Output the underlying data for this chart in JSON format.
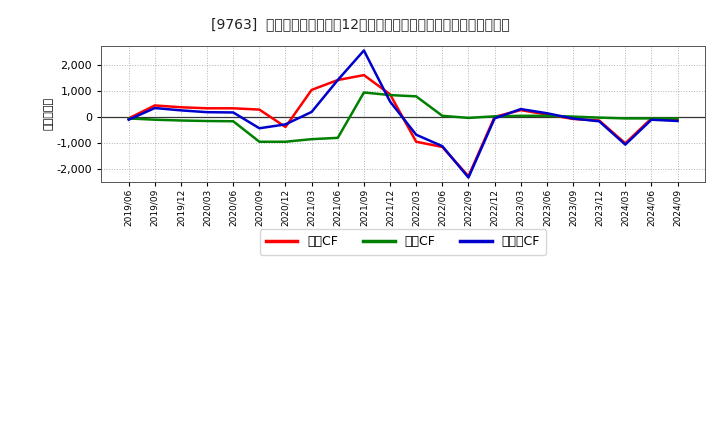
{
  "title": "[9763]  キャッシュフローの12か月移動合計の対前年同期増減額の推移",
  "ylabel": "（百万円）",
  "ylim": [
    -2500,
    2750
  ],
  "yticks": [
    -2000,
    -1000,
    0,
    1000,
    2000
  ],
  "background_color": "#ffffff",
  "plot_bg_color": "#ffffff",
  "grid_color": "#aaaaaa",
  "dates": [
    "2019/06",
    "2019/09",
    "2019/12",
    "2020/03",
    "2020/06",
    "2020/09",
    "2020/12",
    "2021/03",
    "2021/06",
    "2021/09",
    "2021/12",
    "2022/03",
    "2022/06",
    "2022/09",
    "2022/12",
    "2023/03",
    "2023/06",
    "2023/09",
    "2023/12",
    "2024/03",
    "2024/06",
    "2024/09"
  ],
  "series": {
    "営業CF": {
      "color": "#ff0000",
      "values": [
        -50,
        450,
        380,
        340,
        340,
        290,
        -380,
        1050,
        1430,
        1620,
        880,
        -950,
        -1150,
        -2280,
        10,
        270,
        100,
        -70,
        -130,
        -1010,
        -50,
        -100
      ]
    },
    "投賃CF": {
      "color": "#008000",
      "values": [
        -50,
        -100,
        -130,
        -150,
        -160,
        -950,
        -950,
        -850,
        -800,
        950,
        850,
        800,
        50,
        -30,
        30,
        50,
        50,
        20,
        -20,
        -50,
        -50,
        -50
      ]
    },
    "フリーCF": {
      "color": "#0000cc",
      "values": [
        -100,
        350,
        260,
        190,
        180,
        -430,
        -280,
        200,
        1430,
        2570,
        600,
        -680,
        -1120,
        -2330,
        -50,
        310,
        150,
        -55,
        -160,
        -1060,
        -100,
        -150
      ]
    }
  },
  "legend_labels": [
    "営業CF",
    "投賃CF",
    "フリーCF"
  ],
  "legend_colors": [
    "#ff0000",
    "#008000",
    "#0000cc"
  ],
  "line_width": 1.8
}
